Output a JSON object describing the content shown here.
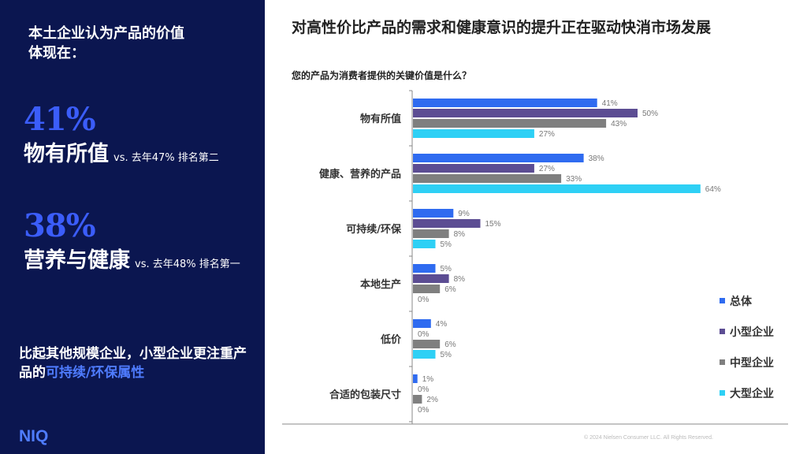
{
  "left": {
    "heading": "本土企业认为产品的价值\n体现在：",
    "stat1": {
      "pct": "41%",
      "label": "物有所值",
      "note": "vs. 去年47% 排名第二"
    },
    "stat2": {
      "pct": "38%",
      "label": "营养与健康",
      "note": "vs. 去年48% 排名第一"
    },
    "insight_prefix": "比起其他规模企业，小型企业更注重产品的",
    "insight_highlight": "可持续/环保属性",
    "logo": "NIQ"
  },
  "title": "对高性价比产品的需求和健康意识的提升正在驱动快消市场发展",
  "subtitle": "您的产品为消费者提供的关键价值是什么？",
  "footer": "© 2024 Nielsen Consumer LLC. All Rights Reserved.",
  "colors": {
    "总体": "#2f6bf0",
    "小型企业": "#5c4d93",
    "中型企业": "#7f7f7f",
    "大型企业": "#2ed0f5"
  },
  "chart_data": {
    "type": "bar",
    "orientation": "horizontal",
    "categories": [
      "物有所值",
      "健康、营养的产品",
      "可持续/环保",
      "本地生产",
      "低价",
      "合适的包装尺寸"
    ],
    "series": [
      {
        "name": "总体",
        "values": [
          41,
          38,
          9,
          5,
          4,
          1
        ]
      },
      {
        "name": "小型企业",
        "values": [
          50,
          27,
          15,
          8,
          0,
          0
        ]
      },
      {
        "name": "中型企业",
        "values": [
          43,
          33,
          8,
          6,
          6,
          2
        ]
      },
      {
        "name": "大型企业",
        "values": [
          27,
          64,
          5,
          0,
          5,
          0
        ]
      }
    ],
    "value_suffix": "%",
    "legend_position": "right",
    "grid": false
  }
}
